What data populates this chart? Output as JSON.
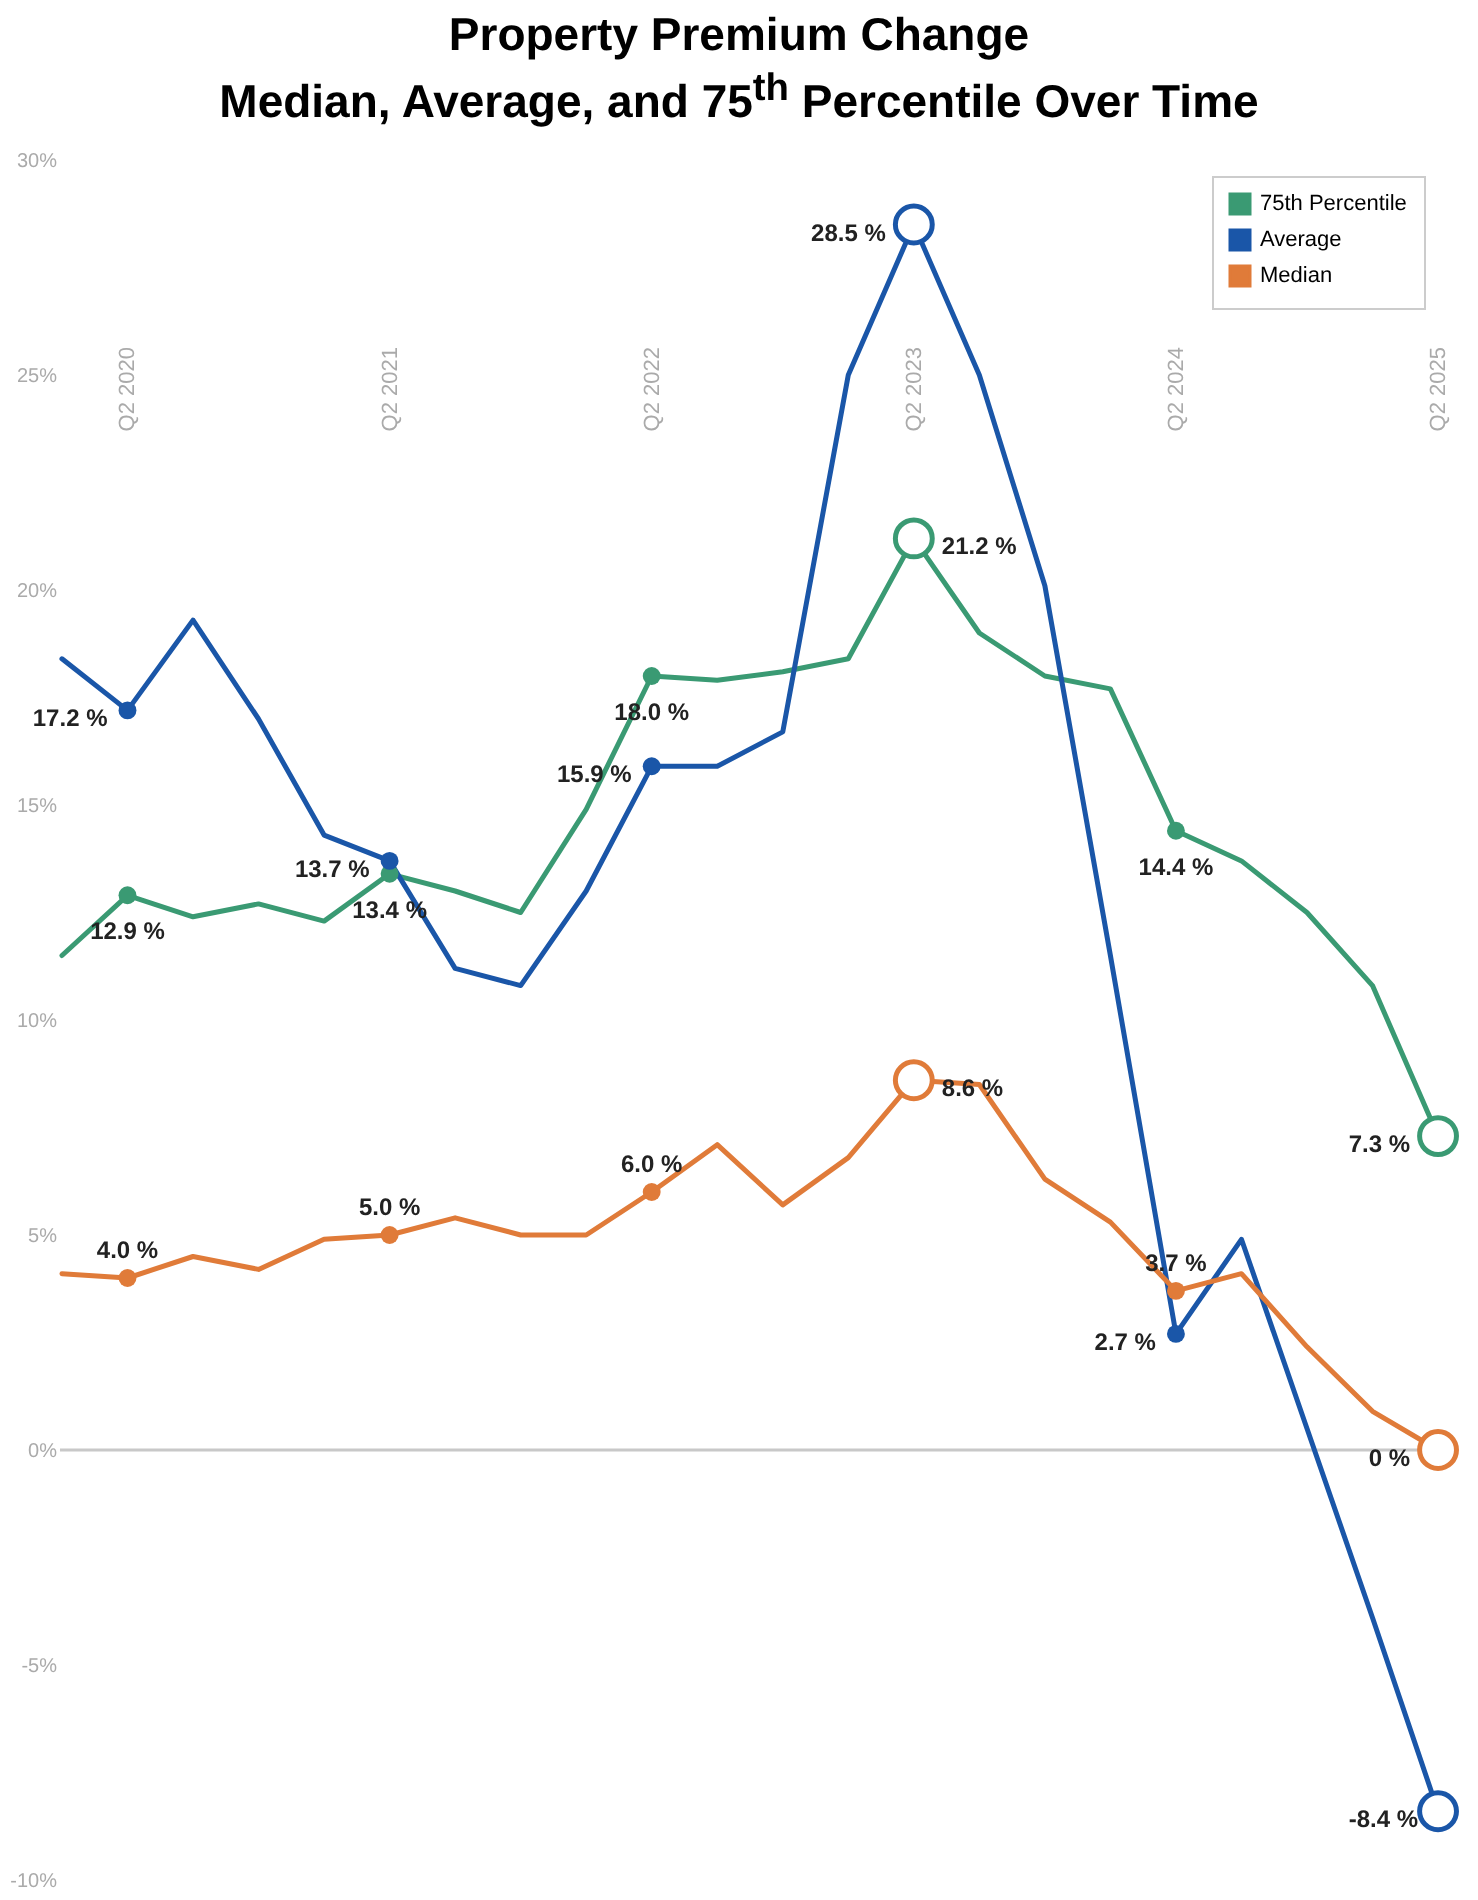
{
  "chart_data": {
    "type": "line",
    "title": "Property Premium Change\nMedian, Average, and 75$^{th}$ Percentile Over Time",
    "categories": [
      null,
      "Q2 2020",
      null,
      null,
      null,
      "Q2 2021",
      null,
      null,
      null,
      "Q2 2022",
      null,
      null,
      null,
      "Q2 2023",
      null,
      null,
      null,
      "Q2 2024",
      null,
      null,
      null,
      "Q2 2025"
    ],
    "series": [
      {
        "name": "75th Percentile",
        "color": "#3a9a73",
        "values": [
          11.5,
          12.9,
          12.4,
          12.7,
          12.3,
          13.4,
          13.0,
          12.5,
          14.9,
          18.0,
          17.9,
          18.1,
          18.4,
          21.2,
          19.0,
          18.0,
          17.7,
          14.4,
          13.7,
          12.5,
          10.8,
          7.3
        ],
        "value_labels": [
          null,
          "12.9 %",
          null,
          null,
          null,
          "13.4 %",
          null,
          null,
          null,
          "18.0 %",
          null,
          null,
          null,
          "21.2 %",
          null,
          null,
          null,
          "14.4 %",
          null,
          null,
          null,
          "7.3 %"
        ]
      },
      {
        "name": "Average",
        "color": "#1a56a8",
        "values": [
          18.4,
          17.2,
          19.3,
          17.0,
          14.3,
          13.7,
          11.2,
          10.8,
          13.0,
          15.9,
          15.9,
          16.7,
          25.0,
          28.5,
          25.0,
          20.1,
          11.5,
          2.7,
          4.9,
          0.5,
          -3.9,
          -8.4
        ],
        "value_labels": [
          null,
          "17.2 %",
          null,
          null,
          null,
          "13.7 %",
          null,
          null,
          null,
          "15.9 %",
          null,
          null,
          null,
          "28.5 %",
          null,
          null,
          null,
          "2.7 %",
          null,
          null,
          null,
          "-8.4 %"
        ]
      },
      {
        "name": "Median",
        "color": "#e07b39",
        "values": [
          4.1,
          4.0,
          4.5,
          4.2,
          4.9,
          5.0,
          5.4,
          5.0,
          5.0,
          6.0,
          7.1,
          5.7,
          6.8,
          8.6,
          8.5,
          6.3,
          5.3,
          3.7,
          4.1,
          2.4,
          0.9,
          0
        ],
        "value_labels": [
          null,
          "4.0 %",
          null,
          null,
          null,
          "5.0 %",
          null,
          null,
          null,
          "6.0 %",
          null,
          null,
          null,
          "8.6 %",
          null,
          null,
          null,
          "3.7 %",
          null,
          null,
          null,
          "0 %"
        ]
      }
    ],
    "ylim": [
      -10,
      30
    ],
    "yticks": [
      {
        "value": -10,
        "label": "-10%"
      },
      {
        "value": -5,
        "label": "-5%"
      },
      {
        "value": 0,
        "label": "0%"
      },
      {
        "value": 5,
        "label": "5%"
      },
      {
        "value": 10,
        "label": "10%"
      },
      {
        "value": 15,
        "label": "15%"
      },
      {
        "value": 20,
        "label": "20%"
      },
      {
        "value": 25,
        "label": "25%"
      },
      {
        "value": 30,
        "label": "30%"
      }
    ],
    "ref_lines": [
      {
        "axis": "y",
        "value": 0,
        "color": "#c8c8c8"
      }
    ],
    "legend": "top right",
    "line_style": "solid"
  }
}
